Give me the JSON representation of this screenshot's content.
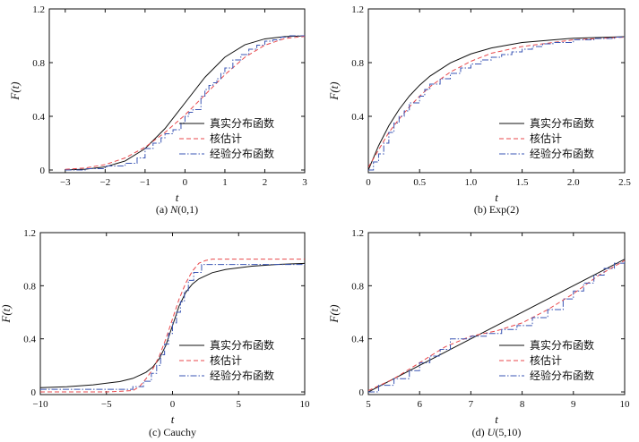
{
  "colors": {
    "true": "#111111",
    "kernel": "#e8474b",
    "empirical": "#3a55b4"
  },
  "chart_data": [
    {
      "type": "line",
      "caption": "(a) N(0,1)",
      "caption_parts": [
        "(a) ",
        "N",
        "(0,1)"
      ],
      "xlabel": "t",
      "ylabel": "F(t)",
      "xlim": [
        -3.4,
        3
      ],
      "ylim": [
        -0.02,
        1.2
      ],
      "xticks": [
        -3,
        -2,
        -1,
        0,
        1,
        2,
        3
      ],
      "yticks": [
        0,
        0.4,
        0.8,
        1.2
      ],
      "ytick_labels": [
        "0",
        "0.4",
        "0.8",
        "1.2"
      ],
      "legend": [
        "真实分布函数",
        "核估计",
        "经验分布函数"
      ],
      "legend_position": "bottom-right",
      "series": [
        {
          "name": "真实分布函数",
          "style": "solid",
          "x": [
            -3,
            -2.5,
            -2,
            -1.5,
            -1,
            -0.5,
            0,
            0.5,
            1,
            1.5,
            2,
            2.5,
            3
          ],
          "y": [
            0.001,
            0.006,
            0.023,
            0.067,
            0.159,
            0.309,
            0.5,
            0.691,
            0.841,
            0.933,
            0.977,
            0.994,
            0.999
          ]
        },
        {
          "name": "核估计",
          "style": "dashed",
          "x": [
            -3,
            -2.5,
            -2,
            -1.5,
            -1,
            -0.5,
            0,
            0.5,
            1,
            1.5,
            2,
            2.5,
            3
          ],
          "y": [
            0.005,
            0.015,
            0.04,
            0.09,
            0.17,
            0.28,
            0.41,
            0.56,
            0.71,
            0.84,
            0.93,
            0.98,
            0.995
          ]
        },
        {
          "name": "经验分布函数",
          "style": "dashdot",
          "step": true,
          "x": [
            -3,
            -2.5,
            -2,
            -1.5,
            -1.2,
            -1,
            -0.8,
            -0.6,
            -0.5,
            -0.3,
            -0.1,
            0,
            0.1,
            0.2,
            0.4,
            0.5,
            0.6,
            0.7,
            0.8,
            0.9,
            1,
            1.2,
            1.4,
            1.6,
            1.8,
            2,
            2.2,
            2.4,
            2.6,
            3
          ],
          "y": [
            0,
            0.01,
            0.03,
            0.05,
            0.09,
            0.16,
            0.2,
            0.24,
            0.27,
            0.3,
            0.35,
            0.4,
            0.43,
            0.45,
            0.55,
            0.6,
            0.63,
            0.65,
            0.68,
            0.72,
            0.76,
            0.82,
            0.86,
            0.9,
            0.93,
            0.96,
            0.97,
            0.99,
            1,
            1
          ]
        }
      ]
    },
    {
      "type": "line",
      "caption": "(b) Exp(2)",
      "caption_parts": [
        "(b) ",
        "",
        "Exp(2)"
      ],
      "xlabel": "t",
      "ylabel": "F(t)",
      "xlim": [
        0,
        2.5
      ],
      "ylim": [
        -0.02,
        1.2
      ],
      "xticks": [
        0,
        0.5,
        1.0,
        1.5,
        2.0,
        2.5
      ],
      "xtick_labels": [
        "0",
        "0.5",
        "1.0",
        "1.5",
        "2.0",
        "2.5"
      ],
      "yticks": [
        0.4,
        0.8,
        1.2
      ],
      "ytick_labels": [
        "0.4",
        "0.8",
        "1.2"
      ],
      "legend": [
        "真实分布函数",
        "核估计",
        "经验分布函数"
      ],
      "legend_position": "bottom-right",
      "series": [
        {
          "name": "真实分布函数",
          "style": "solid",
          "x": [
            0,
            0.1,
            0.2,
            0.3,
            0.4,
            0.5,
            0.6,
            0.8,
            1,
            1.2,
            1.5,
            2,
            2.5
          ],
          "y": [
            0,
            0.181,
            0.33,
            0.451,
            0.551,
            0.632,
            0.699,
            0.798,
            0.865,
            0.909,
            0.95,
            0.982,
            0.993
          ]
        },
        {
          "name": "核估计",
          "style": "dashed",
          "x": [
            0,
            0.1,
            0.2,
            0.3,
            0.4,
            0.5,
            0.6,
            0.8,
            1,
            1.2,
            1.5,
            2,
            2.5
          ],
          "y": [
            0.02,
            0.15,
            0.28,
            0.38,
            0.47,
            0.55,
            0.62,
            0.73,
            0.81,
            0.87,
            0.92,
            0.97,
            0.99
          ]
        },
        {
          "name": "经验分布函数",
          "style": "dashdot",
          "step": true,
          "x": [
            0,
            0.05,
            0.1,
            0.15,
            0.2,
            0.25,
            0.3,
            0.35,
            0.4,
            0.5,
            0.55,
            0.6,
            0.7,
            0.8,
            0.9,
            1.0,
            1.1,
            1.2,
            1.3,
            1.4,
            1.5,
            1.6,
            1.7,
            1.8,
            2.0,
            2.2,
            2.4,
            2.5
          ],
          "y": [
            0,
            0.06,
            0.12,
            0.2,
            0.28,
            0.35,
            0.4,
            0.44,
            0.5,
            0.55,
            0.6,
            0.64,
            0.68,
            0.72,
            0.76,
            0.79,
            0.82,
            0.84,
            0.86,
            0.88,
            0.9,
            0.92,
            0.94,
            0.95,
            0.97,
            0.98,
            0.99,
            1
          ]
        }
      ]
    },
    {
      "type": "line",
      "caption": "(c) Cauchy",
      "caption_parts": [
        "(c) ",
        "",
        "Cauchy"
      ],
      "xlabel": "t",
      "ylabel": "F(t)",
      "xlim": [
        -10,
        10
      ],
      "ylim": [
        -0.02,
        1.2
      ],
      "xticks": [
        -10,
        -5,
        0,
        5,
        10
      ],
      "xtick_labels": [
        "−10",
        "−5",
        "0",
        "5",
        "10"
      ],
      "yticks": [
        0,
        0.4,
        0.8,
        1.2
      ],
      "ytick_labels": [
        "0",
        "0.4",
        "0.8",
        "1.2"
      ],
      "legend": [
        "真实分布函数",
        "核估计",
        "经验分布函数"
      ],
      "legend_position": "bottom-right",
      "series": [
        {
          "name": "真实分布函数",
          "style": "solid",
          "x": [
            -10,
            -8,
            -6,
            -4,
            -3,
            -2,
            -1.5,
            -1,
            -0.5,
            0,
            0.5,
            1,
            1.5,
            2,
            3,
            4,
            6,
            8,
            10
          ],
          "y": [
            0.032,
            0.039,
            0.053,
            0.078,
            0.102,
            0.148,
            0.187,
            0.25,
            0.352,
            0.5,
            0.648,
            0.75,
            0.813,
            0.852,
            0.898,
            0.922,
            0.947,
            0.961,
            0.968
          ]
        },
        {
          "name": "核估计",
          "style": "dashed",
          "x": [
            -10,
            -5,
            -3,
            -2.5,
            -2,
            -1.5,
            -1,
            -0.5,
            0,
            0.5,
            1,
            1.5,
            2,
            2.5,
            3,
            5,
            10
          ],
          "y": [
            0,
            0,
            0.01,
            0.04,
            0.1,
            0.17,
            0.27,
            0.4,
            0.55,
            0.7,
            0.82,
            0.91,
            0.97,
            0.99,
            1,
            1,
            1
          ]
        },
        {
          "name": "经验分布函数",
          "style": "dashdot",
          "step": true,
          "x": [
            -10,
            -3,
            -2.2,
            -1.6,
            -1.2,
            -0.9,
            -0.6,
            -0.3,
            0,
            0.3,
            0.6,
            0.9,
            1.2,
            1.6,
            2.2,
            10
          ],
          "y": [
            0.02,
            0.04,
            0.08,
            0.14,
            0.2,
            0.28,
            0.36,
            0.44,
            0.52,
            0.6,
            0.68,
            0.76,
            0.84,
            0.9,
            0.96,
            0.96
          ]
        }
      ]
    },
    {
      "type": "line",
      "caption": "(d) U(5,10)",
      "caption_parts": [
        "(d) ",
        "U",
        "(5,10)"
      ],
      "xlabel": "t",
      "ylabel": "F(t)",
      "xlim": [
        5,
        10
      ],
      "ylim": [
        -0.02,
        1.2
      ],
      "xticks": [
        5,
        6,
        7,
        8,
        9,
        10
      ],
      "yticks": [
        0,
        0.4,
        0.8,
        1.2
      ],
      "ytick_labels": [
        "0",
        "0.4",
        "0.8",
        "1.2"
      ],
      "legend": [
        "真实分布函数",
        "核估计",
        "经验分布函数"
      ],
      "legend_position": "bottom-right",
      "series": [
        {
          "name": "真实分布函数",
          "style": "solid",
          "x": [
            5,
            10
          ],
          "y": [
            0,
            1
          ]
        },
        {
          "name": "核估计",
          "style": "dashed",
          "x": [
            5,
            5.5,
            6,
            6.5,
            7,
            7.5,
            8,
            8.5,
            9,
            9.5,
            10
          ],
          "y": [
            0.01,
            0.1,
            0.22,
            0.34,
            0.42,
            0.46,
            0.52,
            0.62,
            0.74,
            0.88,
            0.99
          ]
        },
        {
          "name": "经验分布函数",
          "style": "dashdot",
          "step": true,
          "x": [
            5,
            5.2,
            5.5,
            5.8,
            6.0,
            6.2,
            6.4,
            6.6,
            7.0,
            7.3,
            7.6,
            7.9,
            8.2,
            8.5,
            8.8,
            9.0,
            9.2,
            9.4,
            9.6,
            9.8,
            10
          ],
          "y": [
            0,
            0.05,
            0.1,
            0.16,
            0.22,
            0.27,
            0.32,
            0.4,
            0.42,
            0.44,
            0.47,
            0.5,
            0.56,
            0.62,
            0.7,
            0.76,
            0.82,
            0.88,
            0.93,
            0.97,
            1
          ]
        }
      ]
    }
  ]
}
